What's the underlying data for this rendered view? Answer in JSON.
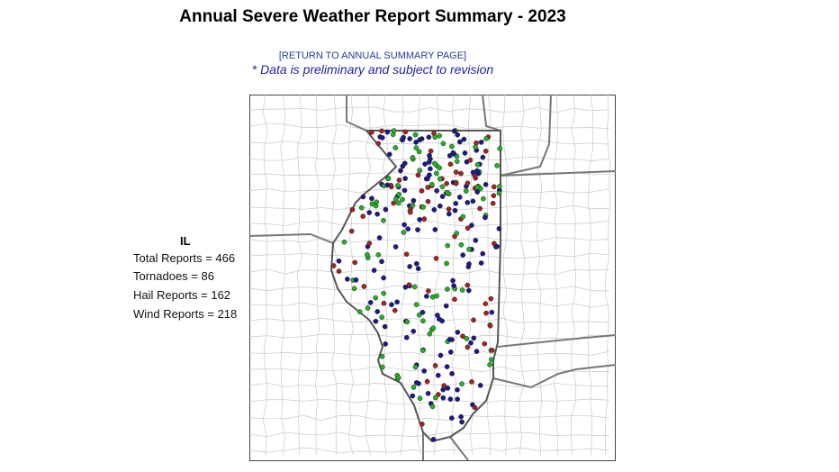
{
  "header": {
    "title": "Annual Severe Weather Report Summary - 2023"
  },
  "links": {
    "return": "[RETURN TO ANNUAL SUMMARY PAGE]"
  },
  "note": "* Data is preliminary and subject to revision",
  "summary": {
    "state": "IL",
    "lines": [
      "Total Reports = 466",
      "Tornadoes = 86",
      "Hail Reports = 162",
      "Wind Reports = 218"
    ]
  }
}
